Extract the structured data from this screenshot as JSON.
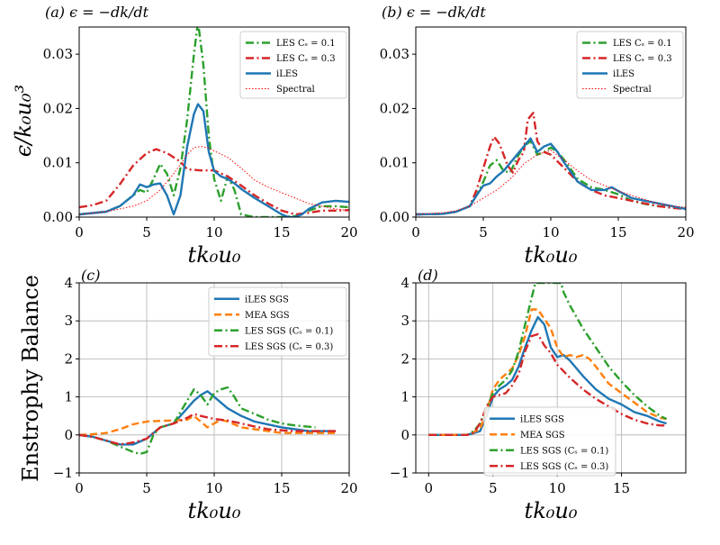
{
  "colors": {
    "green": "#2ca02c",
    "red": "#d62728",
    "blue": "#1f77b4",
    "orange": "#ff7f0e",
    "spectral": "#ff0000",
    "grid": "#b0b0b0"
  },
  "chart_data": [
    {
      "id": "a",
      "type": "line",
      "title": "(a) ϵ = −dk/dt",
      "xlabel": "tk₀u₀",
      "ylabel": "ϵ/k₀u₀³",
      "xlim": [
        0,
        20
      ],
      "ylim": [
        0,
        0.035
      ],
      "xticks": [
        0,
        5,
        10,
        15,
        20
      ],
      "xtick_labels": [
        "0",
        "5",
        "10",
        "15",
        "20"
      ],
      "yticks": [
        0,
        0.01,
        0.02,
        0.03
      ],
      "ytick_labels": [
        "0.00",
        "0.01",
        "0.02",
        "0.03"
      ],
      "grid": false,
      "legend_position": "top-right",
      "series": [
        {
          "name": "LES Cₛ = 0.1",
          "style": "dashdot",
          "color": "green",
          "x": [
            0,
            2,
            3,
            4,
            4.5,
            5,
            5.5,
            6,
            6.5,
            7,
            7.5,
            8,
            8.5,
            8.8,
            9.2,
            9.6,
            10,
            10.5,
            11,
            11.5,
            12,
            13,
            15,
            16,
            17,
            18,
            19,
            20
          ],
          "y": [
            0.0005,
            0.001,
            0.002,
            0.004,
            0.005,
            0.0045,
            0.007,
            0.0098,
            0.008,
            0.004,
            0.009,
            0.018,
            0.03,
            0.036,
            0.028,
            0.015,
            0.007,
            0.003,
            0.0075,
            0.005,
            0.0005,
            0,
            0,
            0.0002,
            0.0012,
            0.002,
            0.002,
            0.0018
          ]
        },
        {
          "name": "LES Cₛ = 0.3",
          "style": "dashdot",
          "color": "red",
          "x": [
            0,
            1,
            2,
            3,
            4,
            5,
            5.7,
            6.5,
            7.5,
            8,
            9,
            10,
            11,
            12,
            13,
            14,
            15,
            16,
            17,
            18,
            19,
            20
          ],
          "y": [
            0.0018,
            0.0022,
            0.003,
            0.006,
            0.0095,
            0.0118,
            0.0125,
            0.0118,
            0.0102,
            0.0088,
            0.0086,
            0.0086,
            0.0075,
            0.0058,
            0.004,
            0.0025,
            0.0012,
            0.0005,
            0.0008,
            0.0012,
            0.0012,
            0.0013
          ]
        },
        {
          "name": "iLES",
          "style": "solid",
          "color": "blue",
          "x": [
            0,
            2,
            3,
            4,
            4.5,
            5,
            5.5,
            6,
            6.5,
            7,
            7.5,
            8,
            8.5,
            8.8,
            9.2,
            9.6,
            10,
            10.5,
            11,
            11.5,
            12,
            13,
            14,
            15,
            15.5,
            16,
            16.5,
            17,
            18,
            19,
            20
          ],
          "y": [
            0.0005,
            0.001,
            0.002,
            0.004,
            0.006,
            0.0055,
            0.006,
            0.0062,
            0.004,
            0.0005,
            0.004,
            0.013,
            0.019,
            0.0208,
            0.0195,
            0.012,
            0.0085,
            0.0075,
            0.007,
            0.0062,
            0.0052,
            0.0035,
            0.002,
            0.0005,
            0,
            0,
            0.0005,
            0.0015,
            0.0027,
            0.003,
            0.0028
          ]
        },
        {
          "name": "Spectral",
          "style": "dotted",
          "color": "spectral",
          "x": [
            0,
            2,
            4,
            5,
            6,
            7,
            8,
            8.5,
            9,
            9.5,
            10,
            11,
            12,
            13,
            14,
            15,
            16,
            17,
            18,
            19,
            20
          ],
          "y": [
            0.0005,
            0.001,
            0.002,
            0.003,
            0.005,
            0.008,
            0.0115,
            0.0128,
            0.013,
            0.0128,
            0.0122,
            0.011,
            0.009,
            0.0068,
            0.0055,
            0.0045,
            0.0035,
            0.0025,
            0.002,
            0.0015,
            0.0012
          ]
        }
      ]
    },
    {
      "id": "b",
      "type": "line",
      "title": "(b) ϵ = −dk/dt",
      "xlabel": "tk₀u₀",
      "ylabel": "",
      "xlim": [
        0,
        20
      ],
      "ylim": [
        0,
        0.035
      ],
      "xticks": [
        0,
        5,
        10,
        15,
        20
      ],
      "xtick_labels": [
        "0",
        "5",
        "10",
        "15",
        "20"
      ],
      "yticks": [
        0,
        0.01,
        0.02,
        0.03
      ],
      "ytick_labels": [
        "0.00",
        "0.01",
        "0.02",
        "0.03"
      ],
      "grid": false,
      "legend_position": "top-right",
      "series": [
        {
          "name": "LES Cₛ = 0.1",
          "style": "dashdot",
          "color": "green",
          "x": [
            0,
            2,
            3,
            4,
            4.5,
            5,
            5.5,
            6,
            6.5,
            7,
            7.5,
            8,
            8.5,
            9,
            9.5,
            10,
            10.5,
            11,
            12,
            13,
            14,
            15,
            16,
            17,
            18,
            19,
            20
          ],
          "y": [
            0.0005,
            0.0006,
            0.001,
            0.002,
            0.004,
            0.0065,
            0.0095,
            0.0105,
            0.0085,
            0.0082,
            0.011,
            0.013,
            0.014,
            0.0115,
            0.012,
            0.0128,
            0.012,
            0.0105,
            0.007,
            0.0055,
            0.005,
            0.0042,
            0.003,
            0.0024,
            0.002,
            0.0018,
            0.0015
          ]
        },
        {
          "name": "LES Cₛ = 0.3",
          "style": "dashdot",
          "color": "red",
          "x": [
            0,
            2,
            3,
            4,
            4.5,
            5,
            5.5,
            5.8,
            6.2,
            6.8,
            7.2,
            7.6,
            8,
            8.3,
            8.7,
            9,
            9.5,
            10,
            11,
            12,
            13,
            14,
            15,
            16,
            17,
            18,
            19,
            20
          ],
          "y": [
            0.0005,
            0.0006,
            0.001,
            0.002,
            0.005,
            0.009,
            0.013,
            0.0148,
            0.0135,
            0.0095,
            0.0082,
            0.0105,
            0.012,
            0.018,
            0.0192,
            0.014,
            0.012,
            0.0115,
            0.009,
            0.0065,
            0.005,
            0.004,
            0.0035,
            0.003,
            0.0025,
            0.002,
            0.0017,
            0.0015
          ]
        },
        {
          "name": "iLES",
          "style": "solid",
          "color": "blue",
          "x": [
            0,
            2,
            3,
            4,
            4.5,
            5,
            5.5,
            6,
            6.5,
            7,
            7.5,
            8,
            8.5,
            9,
            9.5,
            10,
            10.5,
            11,
            12,
            13,
            14,
            14.5,
            15,
            16,
            17,
            18,
            19,
            20
          ],
          "y": [
            0.0005,
            0.0006,
            0.001,
            0.002,
            0.004,
            0.0058,
            0.0062,
            0.0075,
            0.0085,
            0.01,
            0.0115,
            0.013,
            0.0145,
            0.012,
            0.013,
            0.0135,
            0.012,
            0.01,
            0.0065,
            0.005,
            0.005,
            0.0055,
            0.0048,
            0.0035,
            0.003,
            0.0025,
            0.002,
            0.0015
          ]
        },
        {
          "name": "Spectral",
          "style": "dotted",
          "color": "spectral",
          "x": [
            0,
            2,
            3,
            4,
            5,
            6,
            7,
            8,
            9,
            10,
            11,
            12,
            13,
            14,
            15,
            16,
            17,
            18,
            19,
            20
          ],
          "y": [
            0.0005,
            0.0008,
            0.0012,
            0.002,
            0.0035,
            0.005,
            0.007,
            0.0098,
            0.0115,
            0.0123,
            0.0105,
            0.0085,
            0.0068,
            0.0058,
            0.0048,
            0.004,
            0.0032,
            0.0025,
            0.002,
            0.0018
          ]
        }
      ]
    },
    {
      "id": "c",
      "type": "line",
      "title": "(c)",
      "xlabel": "tk₀u₀",
      "ylabel": "Enstrophy Balance",
      "xlim": [
        0,
        20
      ],
      "ylim": [
        -1,
        4
      ],
      "xticks": [
        0,
        5,
        10,
        15,
        20
      ],
      "xtick_labels": [
        "0",
        "5",
        "10",
        "15",
        "20"
      ],
      "yticks": [
        -1,
        0,
        1,
        2,
        3,
        4
      ],
      "ytick_labels": [
        "−1",
        "0",
        "1",
        "2",
        "3",
        "4"
      ],
      "grid": true,
      "legend_position": "top-right",
      "series": [
        {
          "name": "iLES SGS",
          "style": "solid",
          "color": "blue",
          "x": [
            0,
            1,
            2,
            3,
            4,
            5,
            5.5,
            6,
            7,
            8,
            8.5,
            9,
            9.5,
            10,
            11,
            12,
            13,
            15,
            17,
            19
          ],
          "y": [
            0,
            -0.05,
            -0.15,
            -0.25,
            -0.25,
            -0.1,
            0.05,
            0.2,
            0.3,
            0.7,
            0.9,
            1.05,
            1.15,
            1.0,
            0.7,
            0.5,
            0.35,
            0.2,
            0.1,
            0.1
          ]
        },
        {
          "name": "MEA SGS",
          "style": "dashed",
          "color": "orange",
          "x": [
            0,
            1,
            2,
            3,
            4,
            5,
            6,
            7,
            8,
            8.5,
            9,
            9.5,
            10,
            10.5,
            11,
            12,
            13,
            14,
            15,
            16,
            17,
            18,
            19
          ],
          "y": [
            0,
            0.02,
            0.05,
            0.15,
            0.28,
            0.35,
            0.37,
            0.38,
            0.4,
            0.5,
            0.35,
            0.2,
            0.3,
            0.4,
            0.35,
            0.2,
            0.15,
            0.1,
            0.05,
            0.05,
            0.05,
            0.05,
            0.05
          ]
        },
        {
          "name": "LES SGS (Cₛ = 0.1)",
          "style": "dashdot",
          "color": "green",
          "x": [
            0,
            1,
            2,
            3,
            4,
            4.5,
            5,
            5.5,
            6,
            7,
            8,
            8.5,
            9,
            9.5,
            10,
            10.5,
            11,
            11.5,
            12,
            13,
            14,
            15,
            16,
            17.5
          ],
          "y": [
            0,
            -0.05,
            -0.15,
            -0.3,
            -0.45,
            -0.5,
            -0.45,
            0,
            0.2,
            0.3,
            0.9,
            1.2,
            1.05,
            0.8,
            1.1,
            1.2,
            1.25,
            1.0,
            0.7,
            0.55,
            0.4,
            0.3,
            0.25,
            0.2
          ]
        },
        {
          "name": "LES SGS (Cₛ = 0.3)",
          "style": "dashdot",
          "color": "red",
          "x": [
            0,
            1,
            2,
            3,
            4,
            5,
            5.5,
            6,
            7,
            8,
            8.5,
            9,
            10,
            11,
            12,
            13,
            14,
            15,
            16,
            17,
            18,
            19
          ],
          "y": [
            0,
            -0.05,
            -0.15,
            -0.25,
            -0.2,
            -0.1,
            0.05,
            0.2,
            0.3,
            0.45,
            0.55,
            0.5,
            0.42,
            0.38,
            0.3,
            0.22,
            0.15,
            0.12,
            0.1,
            0.1,
            0.1,
            0.1
          ]
        }
      ]
    },
    {
      "id": "d",
      "type": "line",
      "title": "(d)",
      "xlabel": "tk₀u₀",
      "ylabel": "",
      "xlim": [
        -1,
        20
      ],
      "ylim": [
        -1,
        4
      ],
      "xticks": [
        0,
        5,
        10,
        15
      ],
      "xtick_labels": [
        "0",
        "5",
        "10",
        "15"
      ],
      "yticks": [
        -1,
        0,
        1,
        2,
        3,
        4
      ],
      "ytick_labels": [
        "−1",
        "0",
        "1",
        "2",
        "3",
        "4"
      ],
      "grid": true,
      "legend_position": "bottom-right",
      "series": [
        {
          "name": "iLES SGS",
          "style": "solid",
          "color": "blue",
          "x": [
            0,
            1,
            2,
            3,
            4,
            4.5,
            5,
            5.5,
            6,
            6.5,
            7,
            7.5,
            8,
            8.5,
            9,
            9.5,
            10,
            10.5,
            11,
            12,
            13,
            14,
            15,
            16,
            17,
            18,
            18.5
          ],
          "y": [
            0,
            0,
            0,
            0,
            0.1,
            0.5,
            1.0,
            1.2,
            1.3,
            1.45,
            1.8,
            2.3,
            2.75,
            3.1,
            2.9,
            2.3,
            2.05,
            2.1,
            1.95,
            1.55,
            1.2,
            0.95,
            0.8,
            0.6,
            0.5,
            0.35,
            0.3
          ]
        },
        {
          "name": "MEA SGS",
          "style": "dashed",
          "color": "orange",
          "x": [
            0,
            1,
            2,
            3,
            4,
            4.5,
            5,
            5.5,
            6,
            6.5,
            7,
            7.5,
            8,
            8.5,
            9,
            9.5,
            10,
            10.5,
            11,
            11.5,
            12,
            12.5,
            13,
            14,
            15,
            16,
            17,
            18,
            18.5
          ],
          "y": [
            0,
            0,
            0,
            0,
            0.15,
            0.6,
            1.2,
            1.45,
            1.6,
            1.75,
            2.1,
            2.6,
            3.3,
            3.3,
            3.05,
            2.8,
            2.3,
            2.05,
            2.1,
            2.05,
            2.1,
            2.0,
            1.8,
            1.35,
            1.1,
            0.85,
            0.6,
            0.45,
            0.42
          ]
        },
        {
          "name": "LES SGS (Cₛ = 0.1)",
          "style": "dashdot",
          "color": "green",
          "x": [
            0,
            1,
            2,
            3,
            3.5,
            4,
            4.5,
            5,
            5.5,
            6,
            6.5,
            7,
            7.5,
            8,
            8.3,
            10.3,
            10.5,
            11,
            12,
            13,
            14,
            15,
            16,
            17,
            18,
            18.5
          ],
          "y": [
            0,
            0,
            0,
            0,
            0.1,
            0.3,
            0.7,
            1.1,
            1.3,
            1.45,
            1.7,
            2.2,
            2.9,
            3.6,
            4.0,
            4.0,
            3.75,
            3.4,
            2.8,
            2.3,
            1.8,
            1.4,
            1.05,
            0.75,
            0.5,
            0.42
          ]
        },
        {
          "name": "LES SGS (Cₛ = 0.3)",
          "style": "dashdot",
          "color": "red",
          "x": [
            0,
            1,
            2,
            3,
            3.5,
            4,
            4.5,
            5,
            5.5,
            6,
            6.5,
            7,
            7.5,
            8,
            8.5,
            9,
            9.5,
            10,
            11,
            12,
            13,
            14,
            15,
            16,
            17,
            18,
            18.5
          ],
          "y": [
            0,
            0,
            0,
            0,
            0.05,
            0.3,
            0.75,
            1.0,
            1.05,
            1.1,
            1.3,
            1.6,
            2.2,
            2.6,
            2.65,
            2.35,
            2.15,
            1.85,
            1.5,
            1.2,
            0.95,
            0.75,
            0.55,
            0.4,
            0.3,
            0.25,
            0.25
          ]
        }
      ]
    }
  ]
}
